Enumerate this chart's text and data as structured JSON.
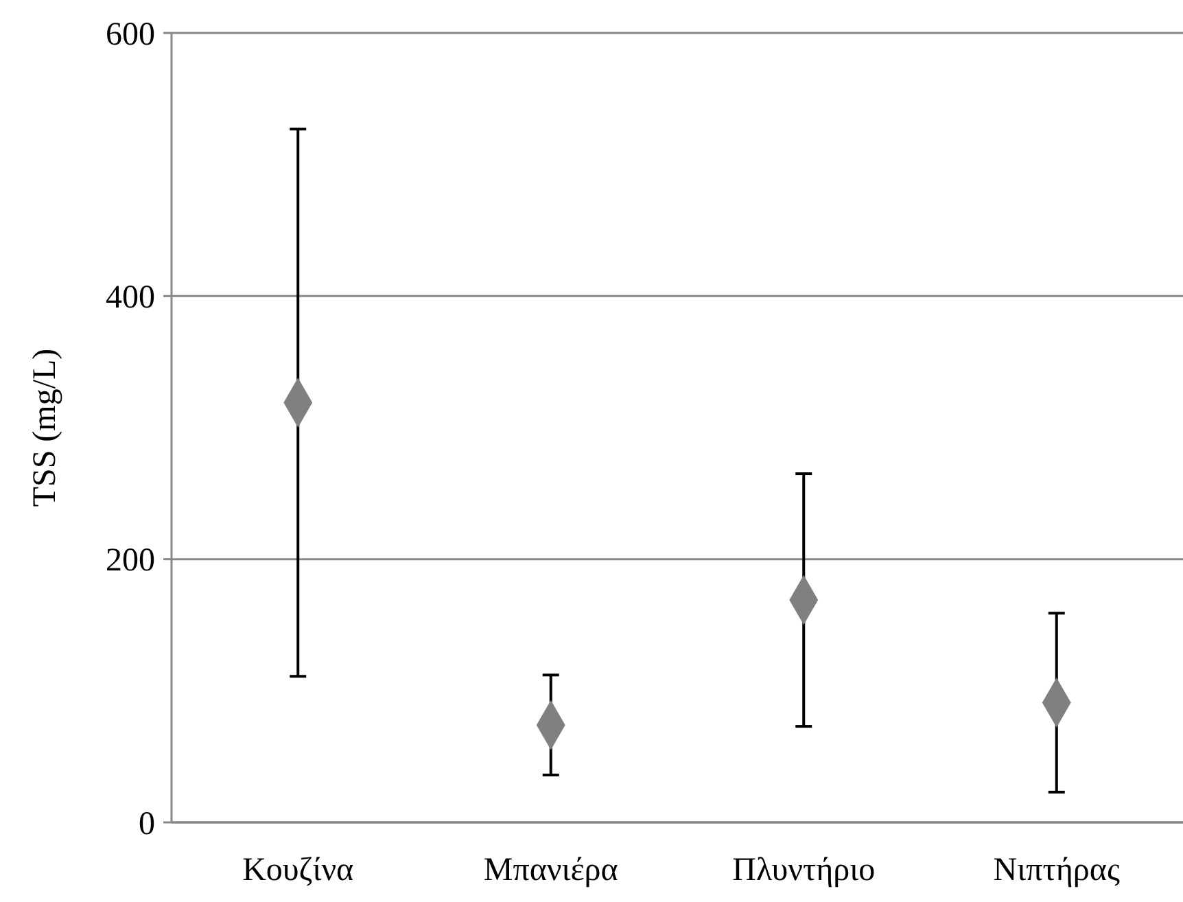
{
  "chart_data": {
    "type": "scatter",
    "ylabel": "TSS (mg/L)",
    "categories": [
      "Κουζίνα",
      "Μπανιέρα",
      "Πλυντήριο",
      "Νιπτήρας"
    ],
    "values": [
      319,
      74,
      169,
      91
    ],
    "errors": [
      208,
      38,
      96,
      68
    ],
    "color": "#808080",
    "marker": "diamond",
    "ylim": [
      0,
      600
    ],
    "yticks": [
      0,
      200,
      400,
      600
    ],
    "grid": "y"
  }
}
